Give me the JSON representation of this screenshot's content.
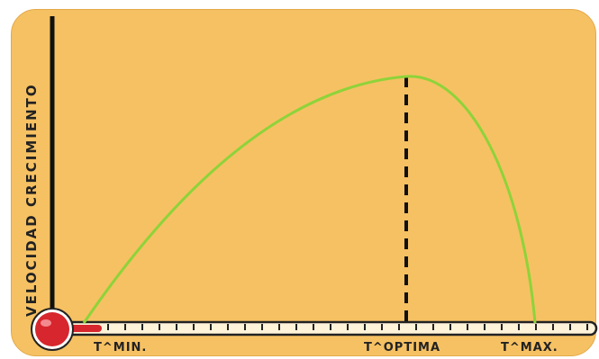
{
  "diagram": {
    "y_axis_label": "VELOCIDAD CRECIMIENTO",
    "x_labels": {
      "min": "T^MIN.",
      "optimum": "T^OPTIMA",
      "max": "T^MAX."
    },
    "colors": {
      "background": "#f6c163",
      "curve": "#8ed33a",
      "thermometer_bulb": "#d7262d",
      "thermometer_tube": "#fff3d9",
      "axis": "#111111"
    }
  }
}
